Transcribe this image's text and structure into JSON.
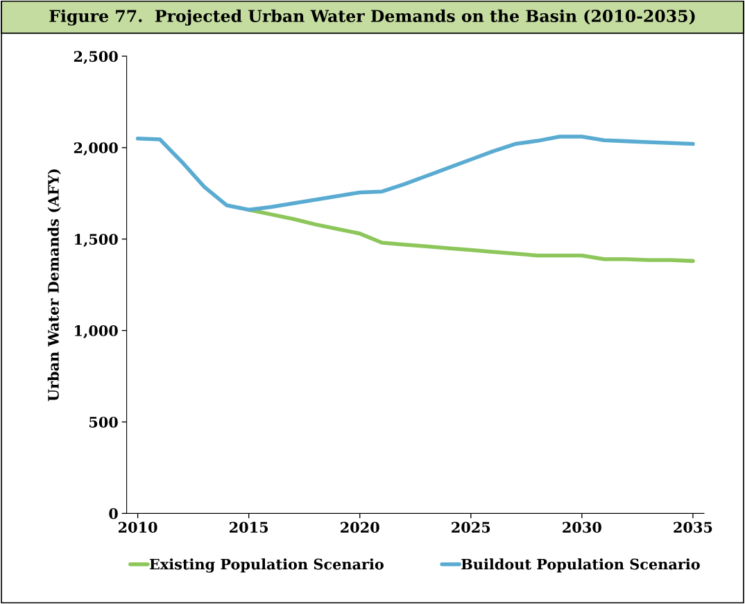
{
  "chart_data": {
    "type": "line",
    "title": "Figure 77.  Projected Urban Water Demands on the Basin (2010-2035)",
    "ylabel": "Urban Water Demands (AFY)",
    "x": [
      2010,
      2011,
      2012,
      2013,
      2014,
      2015,
      2016,
      2017,
      2018,
      2019,
      2020,
      2021,
      2022,
      2023,
      2024,
      2025,
      2026,
      2027,
      2028,
      2029,
      2030,
      2031,
      2032,
      2033,
      2034,
      2035
    ],
    "series": [
      {
        "name": "Existing Population Scenario",
        "color": "#8dc65a",
        "values": [
          null,
          null,
          null,
          null,
          null,
          1660,
          1635,
          1610,
          1580,
          1555,
          1530,
          1480,
          1470,
          1460,
          1450,
          1440,
          1430,
          1420,
          1410,
          1410,
          1410,
          1390,
          1390,
          1385,
          1385,
          1380
        ]
      },
      {
        "name": "Buildout Population Scenario",
        "color": "#5aabd2",
        "values": [
          2050,
          2045,
          1920,
          1785,
          1685,
          1660,
          1675,
          1695,
          1715,
          1735,
          1755,
          1760,
          1800,
          1845,
          1890,
          1935,
          1980,
          2020,
          2037,
          2060,
          2060,
          2040,
          2035,
          2030,
          2025,
          2020
        ]
      }
    ],
    "xlim": [
      2009.5,
      2035.5
    ],
    "xticks": [
      2010,
      2015,
      2020,
      2025,
      2030,
      2035
    ],
    "ylim": [
      0,
      2500
    ],
    "yticks": [
      {
        "value": 0,
        "label": "0"
      },
      {
        "value": 500,
        "label": "500"
      },
      {
        "value": 1000,
        "label": "1,000"
      },
      {
        "value": 1500,
        "label": "1,500"
      },
      {
        "value": 2000,
        "label": "2,000"
      },
      {
        "value": 2500,
        "label": "2,500"
      }
    ],
    "grid": false,
    "legend": "bottom",
    "marker": "none",
    "line_style": "solid"
  }
}
